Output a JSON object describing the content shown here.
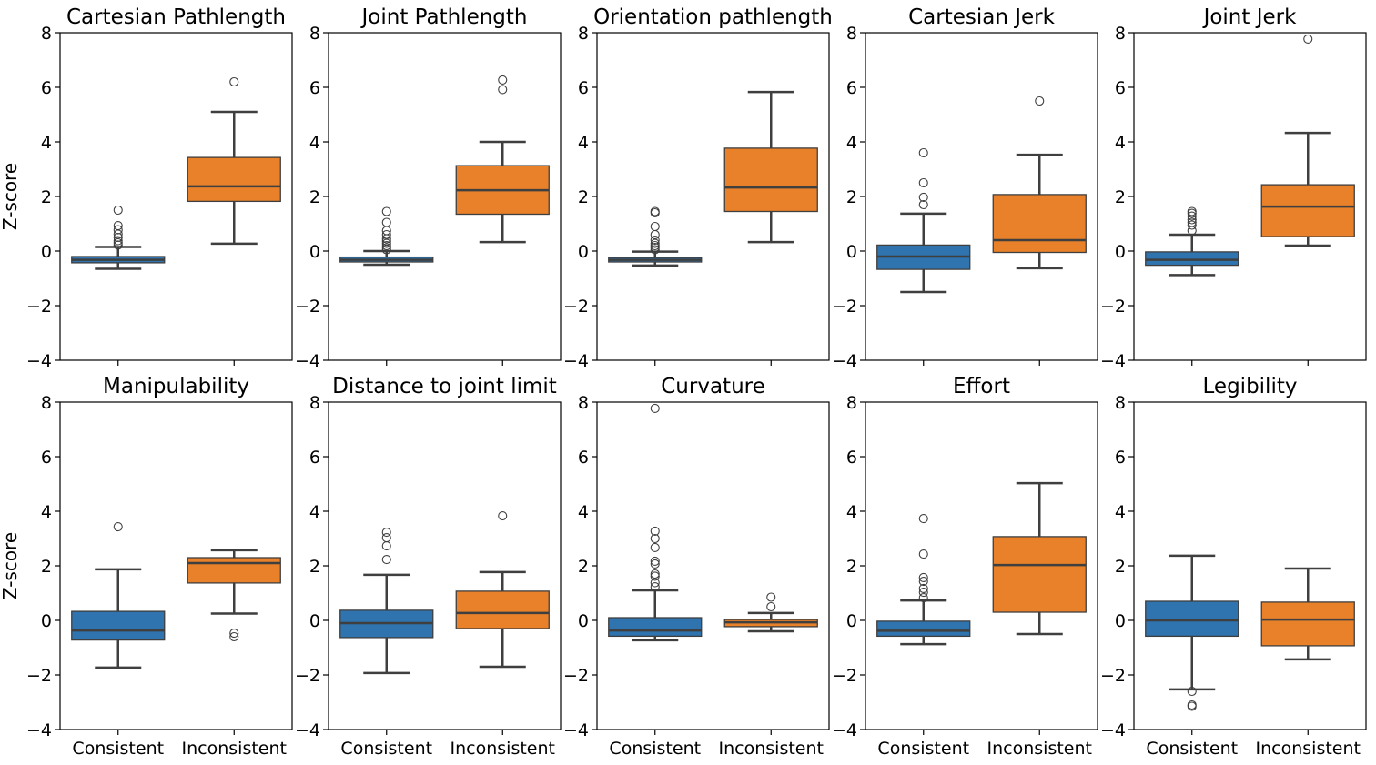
{
  "chart_data": {
    "type": "box",
    "ylabel": "Z-score",
    "ylim": [
      -4,
      8
    ],
    "yticks": [
      -4,
      -2,
      0,
      2,
      4,
      6,
      8
    ],
    "ytick_labels": [
      "−4",
      "−2",
      "0",
      "2",
      "4",
      "6",
      "8"
    ],
    "categories": [
      "Consistent",
      "Inconsistent"
    ],
    "colors": {
      "Consistent": "#2f74ae",
      "Inconsistent": "#e8812a"
    },
    "grid": false,
    "layout": "2 rows x 5 columns",
    "panels": [
      {
        "title": "Cartesian Pathlength",
        "boxes": [
          {
            "category": "Consistent",
            "whislo": -0.65,
            "q1": -0.43,
            "med": -0.32,
            "q3": -0.2,
            "whishi": 0.15,
            "fliers": [
              0.22,
              0.3,
              0.38,
              0.5,
              0.62,
              0.78,
              0.93,
              1.5
            ]
          },
          {
            "category": "Inconsistent",
            "whislo": 0.27,
            "q1": 1.82,
            "med": 2.37,
            "q3": 3.43,
            "whishi": 5.1,
            "fliers": [
              6.2
            ]
          }
        ]
      },
      {
        "title": "Joint Pathlength",
        "boxes": [
          {
            "category": "Consistent",
            "whislo": -0.5,
            "q1": -0.4,
            "med": -0.32,
            "q3": -0.22,
            "whishi": 0.0,
            "fliers": [
              0.05,
              0.12,
              0.2,
              0.28,
              0.36,
              0.45,
              0.6,
              0.75,
              1.05,
              1.45
            ]
          },
          {
            "category": "Inconsistent",
            "whislo": 0.33,
            "q1": 1.35,
            "med": 2.23,
            "q3": 3.13,
            "whishi": 4.0,
            "fliers": [
              5.92,
              6.27
            ]
          }
        ]
      },
      {
        "title": "Orientation pathlength",
        "boxes": [
          {
            "category": "Consistent",
            "whislo": -0.53,
            "q1": -0.4,
            "med": -0.32,
            "q3": -0.24,
            "whishi": -0.02,
            "fliers": [
              0.05,
              0.13,
              0.2,
              0.28,
              0.4,
              0.6,
              0.9,
              1.4,
              1.45
            ]
          },
          {
            "category": "Inconsistent",
            "whislo": 0.33,
            "q1": 1.45,
            "med": 2.33,
            "q3": 3.77,
            "whishi": 5.83,
            "fliers": []
          }
        ]
      },
      {
        "title": "Cartesian Jerk",
        "boxes": [
          {
            "category": "Consistent",
            "whislo": -1.5,
            "q1": -0.67,
            "med": -0.2,
            "q3": 0.22,
            "whishi": 1.37,
            "fliers": [
              1.7,
              1.97,
              2.5,
              3.6
            ]
          },
          {
            "category": "Inconsistent",
            "whislo": -0.63,
            "q1": -0.05,
            "med": 0.4,
            "q3": 2.07,
            "whishi": 3.53,
            "fliers": [
              5.5
            ]
          }
        ]
      },
      {
        "title": "Joint Jerk",
        "boxes": [
          {
            "category": "Consistent",
            "whislo": -0.88,
            "q1": -0.52,
            "med": -0.32,
            "q3": -0.03,
            "whishi": 0.6,
            "fliers": [
              0.75,
              0.95,
              1.05,
              1.15,
              1.28,
              1.38,
              1.45
            ]
          },
          {
            "category": "Inconsistent",
            "whislo": 0.2,
            "q1": 0.53,
            "med": 1.63,
            "q3": 2.43,
            "whishi": 4.33,
            "fliers": [
              7.77
            ]
          }
        ]
      },
      {
        "title": "Manipulability",
        "boxes": [
          {
            "category": "Consistent",
            "whislo": -1.73,
            "q1": -0.72,
            "med": -0.37,
            "q3": 0.33,
            "whishi": 1.87,
            "fliers": [
              3.43
            ]
          },
          {
            "category": "Inconsistent",
            "whislo": 0.25,
            "q1": 1.37,
            "med": 2.1,
            "q3": 2.3,
            "whishi": 2.57,
            "fliers": [
              -0.47,
              -0.6
            ]
          }
        ]
      },
      {
        "title": "Distance to joint limit",
        "boxes": [
          {
            "category": "Consistent",
            "whislo": -1.93,
            "q1": -0.63,
            "med": -0.1,
            "q3": 0.37,
            "whishi": 1.67,
            "fliers": [
              2.23,
              2.73,
              3.03,
              3.23
            ]
          },
          {
            "category": "Inconsistent",
            "whislo": -1.7,
            "q1": -0.3,
            "med": 0.27,
            "q3": 1.07,
            "whishi": 1.77,
            "fliers": [
              3.83
            ]
          }
        ]
      },
      {
        "title": "Curvature",
        "boxes": [
          {
            "category": "Consistent",
            "whislo": -0.73,
            "q1": -0.58,
            "med": -0.37,
            "q3": 0.1,
            "whishi": 1.1,
            "fliers": [
              1.23,
              1.38,
              1.62,
              1.7,
              2.07,
              2.17,
              2.67,
              3.0,
              3.27,
              7.77
            ]
          },
          {
            "category": "Inconsistent",
            "whislo": -0.4,
            "q1": -0.23,
            "med": -0.07,
            "q3": 0.03,
            "whishi": 0.27,
            "fliers": [
              0.5,
              0.85
            ]
          }
        ]
      },
      {
        "title": "Effort",
        "boxes": [
          {
            "category": "Consistent",
            "whislo": -0.87,
            "q1": -0.58,
            "med": -0.38,
            "q3": -0.03,
            "whishi": 0.73,
            "fliers": [
              0.83,
              1.03,
              1.17,
              1.43,
              1.57,
              2.43,
              3.73
            ]
          },
          {
            "category": "Inconsistent",
            "whislo": -0.5,
            "q1": 0.3,
            "med": 2.03,
            "q3": 3.07,
            "whishi": 5.03,
            "fliers": []
          }
        ]
      },
      {
        "title": "Legibility",
        "boxes": [
          {
            "category": "Consistent",
            "whislo": -2.53,
            "q1": -0.58,
            "med": 0.0,
            "q3": 0.7,
            "whishi": 2.37,
            "fliers": [
              -2.6,
              -3.1,
              -3.15
            ]
          },
          {
            "category": "Inconsistent",
            "whislo": -1.43,
            "q1": -0.93,
            "med": 0.03,
            "q3": 0.67,
            "whishi": 1.9,
            "fliers": []
          }
        ]
      }
    ]
  }
}
